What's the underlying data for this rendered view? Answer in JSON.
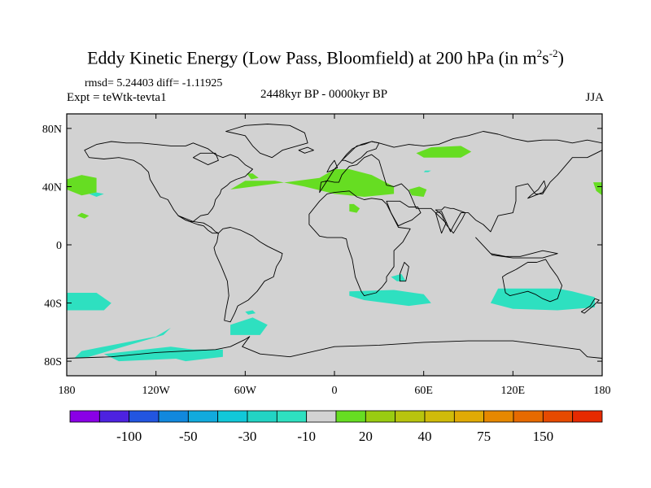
{
  "title": {
    "main": "Eddy Kinetic Energy (Low Pass, Bloomfield) at 200 hPa (in m",
    "sup1": "2",
    "mid": "s",
    "sup2": "-2",
    "close": ")"
  },
  "subtitle": {
    "stats": "rmsd= 5.24403 diff= -1.11925",
    "experiment": "Expt = teWtk-tevta1",
    "period": "2448kyr BP - 0000kyr BP",
    "season": "JJA"
  },
  "chart_data": {
    "type": "map",
    "projection": "cylindrical-equidistant",
    "lon_range": [
      -180,
      180
    ],
    "lat_range": [
      -90,
      90
    ],
    "x_ticks": [
      {
        "lon": -180,
        "label": "180"
      },
      {
        "lon": -120,
        "label": "120W"
      },
      {
        "lon": -60,
        "label": "60W"
      },
      {
        "lon": 0,
        "label": "0"
      },
      {
        "lon": 60,
        "label": "60E"
      },
      {
        "lon": 120,
        "label": "120E"
      },
      {
        "lon": 180,
        "label": "180"
      }
    ],
    "y_ticks": [
      {
        "lat": 80,
        "label": "80N"
      },
      {
        "lat": 40,
        "label": "40N"
      },
      {
        "lat": 0,
        "label": "0"
      },
      {
        "lat": -40,
        "label": "40S"
      },
      {
        "lat": -80,
        "label": "80S"
      }
    ],
    "background_color": "#d2d2d2",
    "positive_color": "#66dd22",
    "negative_color": "#2ee0c0",
    "regions": [
      {
        "sign": "positive",
        "lon": [
          -70,
          -10,
          0,
          10,
          25,
          40,
          40,
          20,
          0,
          -20,
          -40,
          -60
        ],
        "lat": [
          38,
          46,
          52,
          52,
          48,
          40,
          35,
          33,
          35,
          40,
          44,
          44
        ]
      },
      {
        "sign": "positive",
        "lon": [
          55,
          65,
          85,
          92,
          85,
          60
        ],
        "lat": [
          63,
          67,
          68,
          64,
          60,
          60
        ]
      },
      {
        "sign": "positive",
        "lon": [
          -180,
          -170,
          -160,
          -160,
          -170,
          -180
        ],
        "lat": [
          45,
          48,
          46,
          36,
          34,
          38
        ]
      },
      {
        "sign": "positive",
        "lon": [
          -173,
          -170,
          -165,
          -168
        ],
        "lat": [
          20,
          22,
          20,
          18
        ]
      },
      {
        "sign": "positive",
        "lon": [
          50,
          57,
          62,
          60,
          52
        ],
        "lat": [
          38,
          40,
          38,
          33,
          34
        ]
      },
      {
        "sign": "positive",
        "lon": [
          10,
          13,
          17,
          15,
          10
        ],
        "lat": [
          28,
          28,
          25,
          22,
          23
        ]
      },
      {
        "sign": "positive",
        "lon": [
          -59,
          -55,
          -51,
          -56
        ],
        "lat": [
          49,
          49,
          46,
          45
        ]
      },
      {
        "sign": "positive",
        "lon": [
          174,
          180,
          180,
          176
        ],
        "lat": [
          43,
          43,
          34,
          37
        ]
      },
      {
        "sign": "negative",
        "lon": [
          -165,
          -160,
          -155,
          -160
        ],
        "lat": [
          35,
          36,
          35,
          33
        ]
      },
      {
        "sign": "negative",
        "lon": [
          -180,
          -160,
          -150,
          -155,
          -180
        ],
        "lat": [
          -33,
          -33,
          -40,
          -45,
          -45
        ]
      },
      {
        "sign": "negative",
        "lon": [
          -170,
          -120,
          -110,
          -115,
          -165,
          -175
        ],
        "lat": [
          -73,
          -63,
          -57,
          -62,
          -77,
          -78
        ]
      },
      {
        "sign": "negative",
        "lon": [
          -155,
          -110,
          -95,
          -100,
          -145
        ],
        "lat": [
          -75,
          -70,
          -72,
          -78,
          -80
        ]
      },
      {
        "sign": "negative",
        "lon": [
          -70,
          -55,
          -45,
          -50,
          -70
        ],
        "lat": [
          -55,
          -50,
          -55,
          -62,
          -62
        ]
      },
      {
        "sign": "negative",
        "lon": [
          -115,
          -95,
          -75,
          -75,
          -100
        ],
        "lat": [
          -76,
          -72,
          -72,
          -77,
          -80
        ]
      },
      {
        "sign": "negative",
        "lon": [
          10,
          40,
          60,
          65,
          50,
          20,
          10
        ],
        "lat": [
          -32,
          -31,
          -34,
          -40,
          -42,
          -38,
          -35
        ]
      },
      {
        "sign": "negative",
        "lon": [
          38,
          45,
          48,
          42
        ],
        "lat": [
          -22,
          -20,
          -25,
          -25
        ]
      },
      {
        "sign": "negative",
        "lon": [
          110,
          150,
          160,
          175,
          175,
          150,
          120,
          105
        ],
        "lat": [
          -30,
          -30,
          -32,
          -36,
          -43,
          -45,
          -44,
          -40
        ]
      },
      {
        "sign": "negative",
        "lon": [
          -60,
          -55,
          -53,
          -58
        ],
        "lat": [
          -46,
          -45,
          -47,
          -48
        ]
      },
      {
        "sign": "negative",
        "lon": [
          61,
          65,
          63,
          60
        ],
        "lat": [
          51,
          51,
          50,
          50
        ]
      }
    ],
    "colorbar": {
      "colors": [
        "#8a00e6",
        "#4d22e0",
        "#2255e0",
        "#1188dd",
        "#11aadd",
        "#11c8d8",
        "#22d4c4",
        "#2ee0c0",
        "#d2d2d2",
        "#66dd22",
        "#99cc11",
        "#b8c40e",
        "#d0bb0a",
        "#e0aa05",
        "#e68800",
        "#e66a00",
        "#e64a00",
        "#e62a00"
      ],
      "labels": [
        {
          "index": 2,
          "label": "-100"
        },
        {
          "index": 4,
          "label": "-50"
        },
        {
          "index": 6,
          "label": "-30"
        },
        {
          "index": 8,
          "label": "-10"
        },
        {
          "index": 10,
          "label": "20"
        },
        {
          "index": 12,
          "label": "40"
        },
        {
          "index": 14,
          "label": "75"
        },
        {
          "index": 16,
          "label": "150"
        }
      ]
    }
  },
  "landmasses": [
    {
      "name": "north-america",
      "lon": [
        -165,
        -155,
        -145,
        -135,
        -130,
        -125,
        -124,
        -120,
        -117,
        -112,
        -108,
        -105,
        -100,
        -97,
        -95,
        -90,
        -85,
        -82,
        -81,
        -80,
        -77,
        -76,
        -72,
        -70,
        -66,
        -60,
        -55,
        -60,
        -65,
        -70,
        -75,
        -80,
        -85,
        -90,
        -95,
        -100,
        -110,
        -120,
        -130,
        -140,
        -150,
        -160,
        -168
      ],
      "lat": [
        60,
        59,
        60,
        58,
        55,
        50,
        45,
        38,
        33,
        31,
        24,
        20,
        17,
        16,
        16,
        20,
        21,
        25,
        27,
        31,
        35,
        38,
        41,
        43,
        45,
        47,
        52,
        55,
        60,
        62,
        60,
        62,
        66,
        68,
        70,
        68,
        68,
        69,
        70,
        70,
        71,
        69,
        65
      ]
    },
    {
      "name": "central-america",
      "lon": [
        -105,
        -95,
        -88,
        -83,
        -80,
        -78,
        -82,
        -85,
        -88,
        -92,
        -100
      ],
      "lat": [
        20,
        16,
        15,
        12,
        9,
        8,
        8,
        10,
        13,
        14,
        17
      ]
    },
    {
      "name": "south-america",
      "lon": [
        -78,
        -75,
        -70,
        -63,
        -55,
        -50,
        -45,
        -35,
        -36,
        -39,
        -41,
        -47,
        -52,
        -58,
        -65,
        -67,
        -70,
        -74,
        -73,
        -71,
        -72,
        -76,
        -80,
        -81,
        -79
      ],
      "lat": [
        8,
        11,
        12,
        10,
        6,
        2,
        -1,
        -6,
        -10,
        -15,
        -22,
        -25,
        -32,
        -38,
        -42,
        -47,
        -53,
        -52,
        -45,
        -35,
        -25,
        -15,
        -6,
        -2,
        2
      ]
    },
    {
      "name": "greenland",
      "lon": [
        -73,
        -60,
        -45,
        -30,
        -20,
        -18,
        -25,
        -35,
        -42,
        -50,
        -55,
        -60
      ],
      "lat": [
        78,
        82,
        83,
        82,
        77,
        70,
        68,
        65,
        60,
        63,
        68,
        75
      ]
    },
    {
      "name": "africa",
      "lon": [
        -17,
        -10,
        -5,
        0,
        10,
        15,
        20,
        25,
        32,
        35,
        43,
        51,
        46,
        40,
        40,
        35,
        35,
        32,
        28,
        20,
        18,
        14,
        12,
        9,
        8,
        5,
        0,
        -5,
        -10,
        -17
      ],
      "lat": [
        21,
        30,
        35,
        36,
        37,
        33,
        31,
        32,
        31,
        28,
        12,
        11,
        2,
        -4,
        -15,
        -22,
        -25,
        -29,
        -33,
        -35,
        -32,
        -22,
        -10,
        -1,
        4,
        5,
        5,
        5,
        6,
        14
      ]
    },
    {
      "name": "eurasia",
      "lon": [
        -10,
        -9,
        -5,
        0,
        3,
        5,
        10,
        15,
        20,
        25,
        30,
        35,
        40,
        45,
        50,
        55,
        60,
        65,
        70,
        75,
        72,
        68,
        72,
        78,
        80,
        85,
        90,
        95,
        100,
        105,
        110,
        120,
        122,
        122,
        130,
        135,
        140,
        145,
        150,
        160,
        170,
        180,
        180,
        170,
        160,
        150,
        140,
        130,
        120,
        110,
        100,
        90,
        80,
        70,
        60,
        50,
        40,
        30,
        25,
        20,
        15,
        10,
        5,
        0,
        -5
      ],
      "lat": [
        36,
        43,
        44,
        43,
        43,
        48,
        54,
        55,
        60,
        62,
        58,
        41,
        40,
        42,
        37,
        25,
        25,
        25,
        20,
        15,
        8,
        22,
        23,
        9,
        13,
        22,
        22,
        17,
        14,
        9,
        20,
        22,
        30,
        40,
        42,
        35,
        35,
        43,
        48,
        60,
        60,
        65,
        70,
        72,
        70,
        72,
        72,
        71,
        73,
        76,
        78,
        75,
        73,
        69,
        68,
        69,
        67,
        70,
        71,
        69,
        68,
        63,
        58,
        52,
        44
      ]
    },
    {
      "name": "arabia",
      "lon": [
        35,
        40,
        44,
        50,
        56,
        58,
        52,
        47,
        43,
        38
      ],
      "lat": [
        30,
        30,
        30,
        26,
        26,
        22,
        17,
        15,
        13,
        22
      ]
    },
    {
      "name": "india",
      "lon": [
        68,
        72,
        75,
        80,
        86,
        88,
        80,
        78,
        74,
        72
      ],
      "lat": [
        24,
        21,
        14,
        8,
        18,
        22,
        25,
        25,
        26,
        24
      ]
    },
    {
      "name": "scandinavia",
      "lon": [
        5,
        8,
        12,
        18,
        25,
        30,
        28,
        22,
        18,
        12,
        7
      ],
      "lat": [
        58,
        62,
        66,
        69,
        71,
        70,
        66,
        64,
        60,
        56,
        58
      ]
    },
    {
      "name": "australia",
      "lon": [
        113,
        116,
        122,
        130,
        136,
        142,
        145,
        150,
        153,
        150,
        145,
        140,
        135,
        130,
        118,
        115
      ],
      "lat": [
        -22,
        -20,
        -17,
        -12,
        -12,
        -10,
        -15,
        -22,
        -28,
        -37,
        -39,
        -37,
        -34,
        -32,
        -35,
        -33
      ]
    },
    {
      "name": "antarctica",
      "lon": [
        -180,
        -150,
        -120,
        -100,
        -80,
        -70,
        -60,
        -57,
        -62,
        -50,
        -30,
        0,
        30,
        60,
        90,
        120,
        150,
        165,
        170,
        180,
        180,
        -180
      ],
      "lat": [
        -78,
        -77,
        -74,
        -73,
        -72,
        -70,
        -65,
        -63,
        -70,
        -75,
        -77,
        -70,
        -69,
        -67,
        -66,
        -66,
        -70,
        -72,
        -77,
        -78,
        -90,
        -90
      ]
    },
    {
      "name": "britain",
      "lon": [
        -5,
        -3,
        0,
        2,
        -2,
        -5
      ],
      "lat": [
        50,
        54,
        58,
        53,
        51,
        50
      ]
    },
    {
      "name": "japan",
      "lon": [
        130,
        135,
        140,
        142,
        141,
        137,
        132
      ],
      "lat": [
        32,
        34,
        36,
        40,
        44,
        38,
        34
      ]
    },
    {
      "name": "madagascar",
      "lon": [
        44,
        48,
        50,
        47,
        44
      ],
      "lat": [
        -25,
        -25,
        -15,
        -12,
        -20
      ]
    },
    {
      "name": "new-zealand",
      "lon": [
        166,
        172,
        175,
        178,
        174,
        168
      ],
      "lat": [
        -46,
        -42,
        -37,
        -38,
        -42,
        -47
      ]
    },
    {
      "name": "indonesia",
      "lon": [
        95,
        105,
        115,
        125,
        140,
        150,
        140,
        120,
        106
      ],
      "lat": [
        5,
        -6,
        -8,
        -8,
        -4,
        -6,
        -9,
        -9,
        -7
      ]
    },
    {
      "name": "iceland",
      "lon": [
        -24,
        -18,
        -14,
        -20
      ],
      "lat": [
        65,
        67,
        65,
        63
      ]
    },
    {
      "name": "hudson-bay",
      "lon": [
        -95,
        -85,
        -78,
        -80,
        -90
      ],
      "lat": [
        60,
        55,
        58,
        63,
        63
      ]
    }
  ]
}
